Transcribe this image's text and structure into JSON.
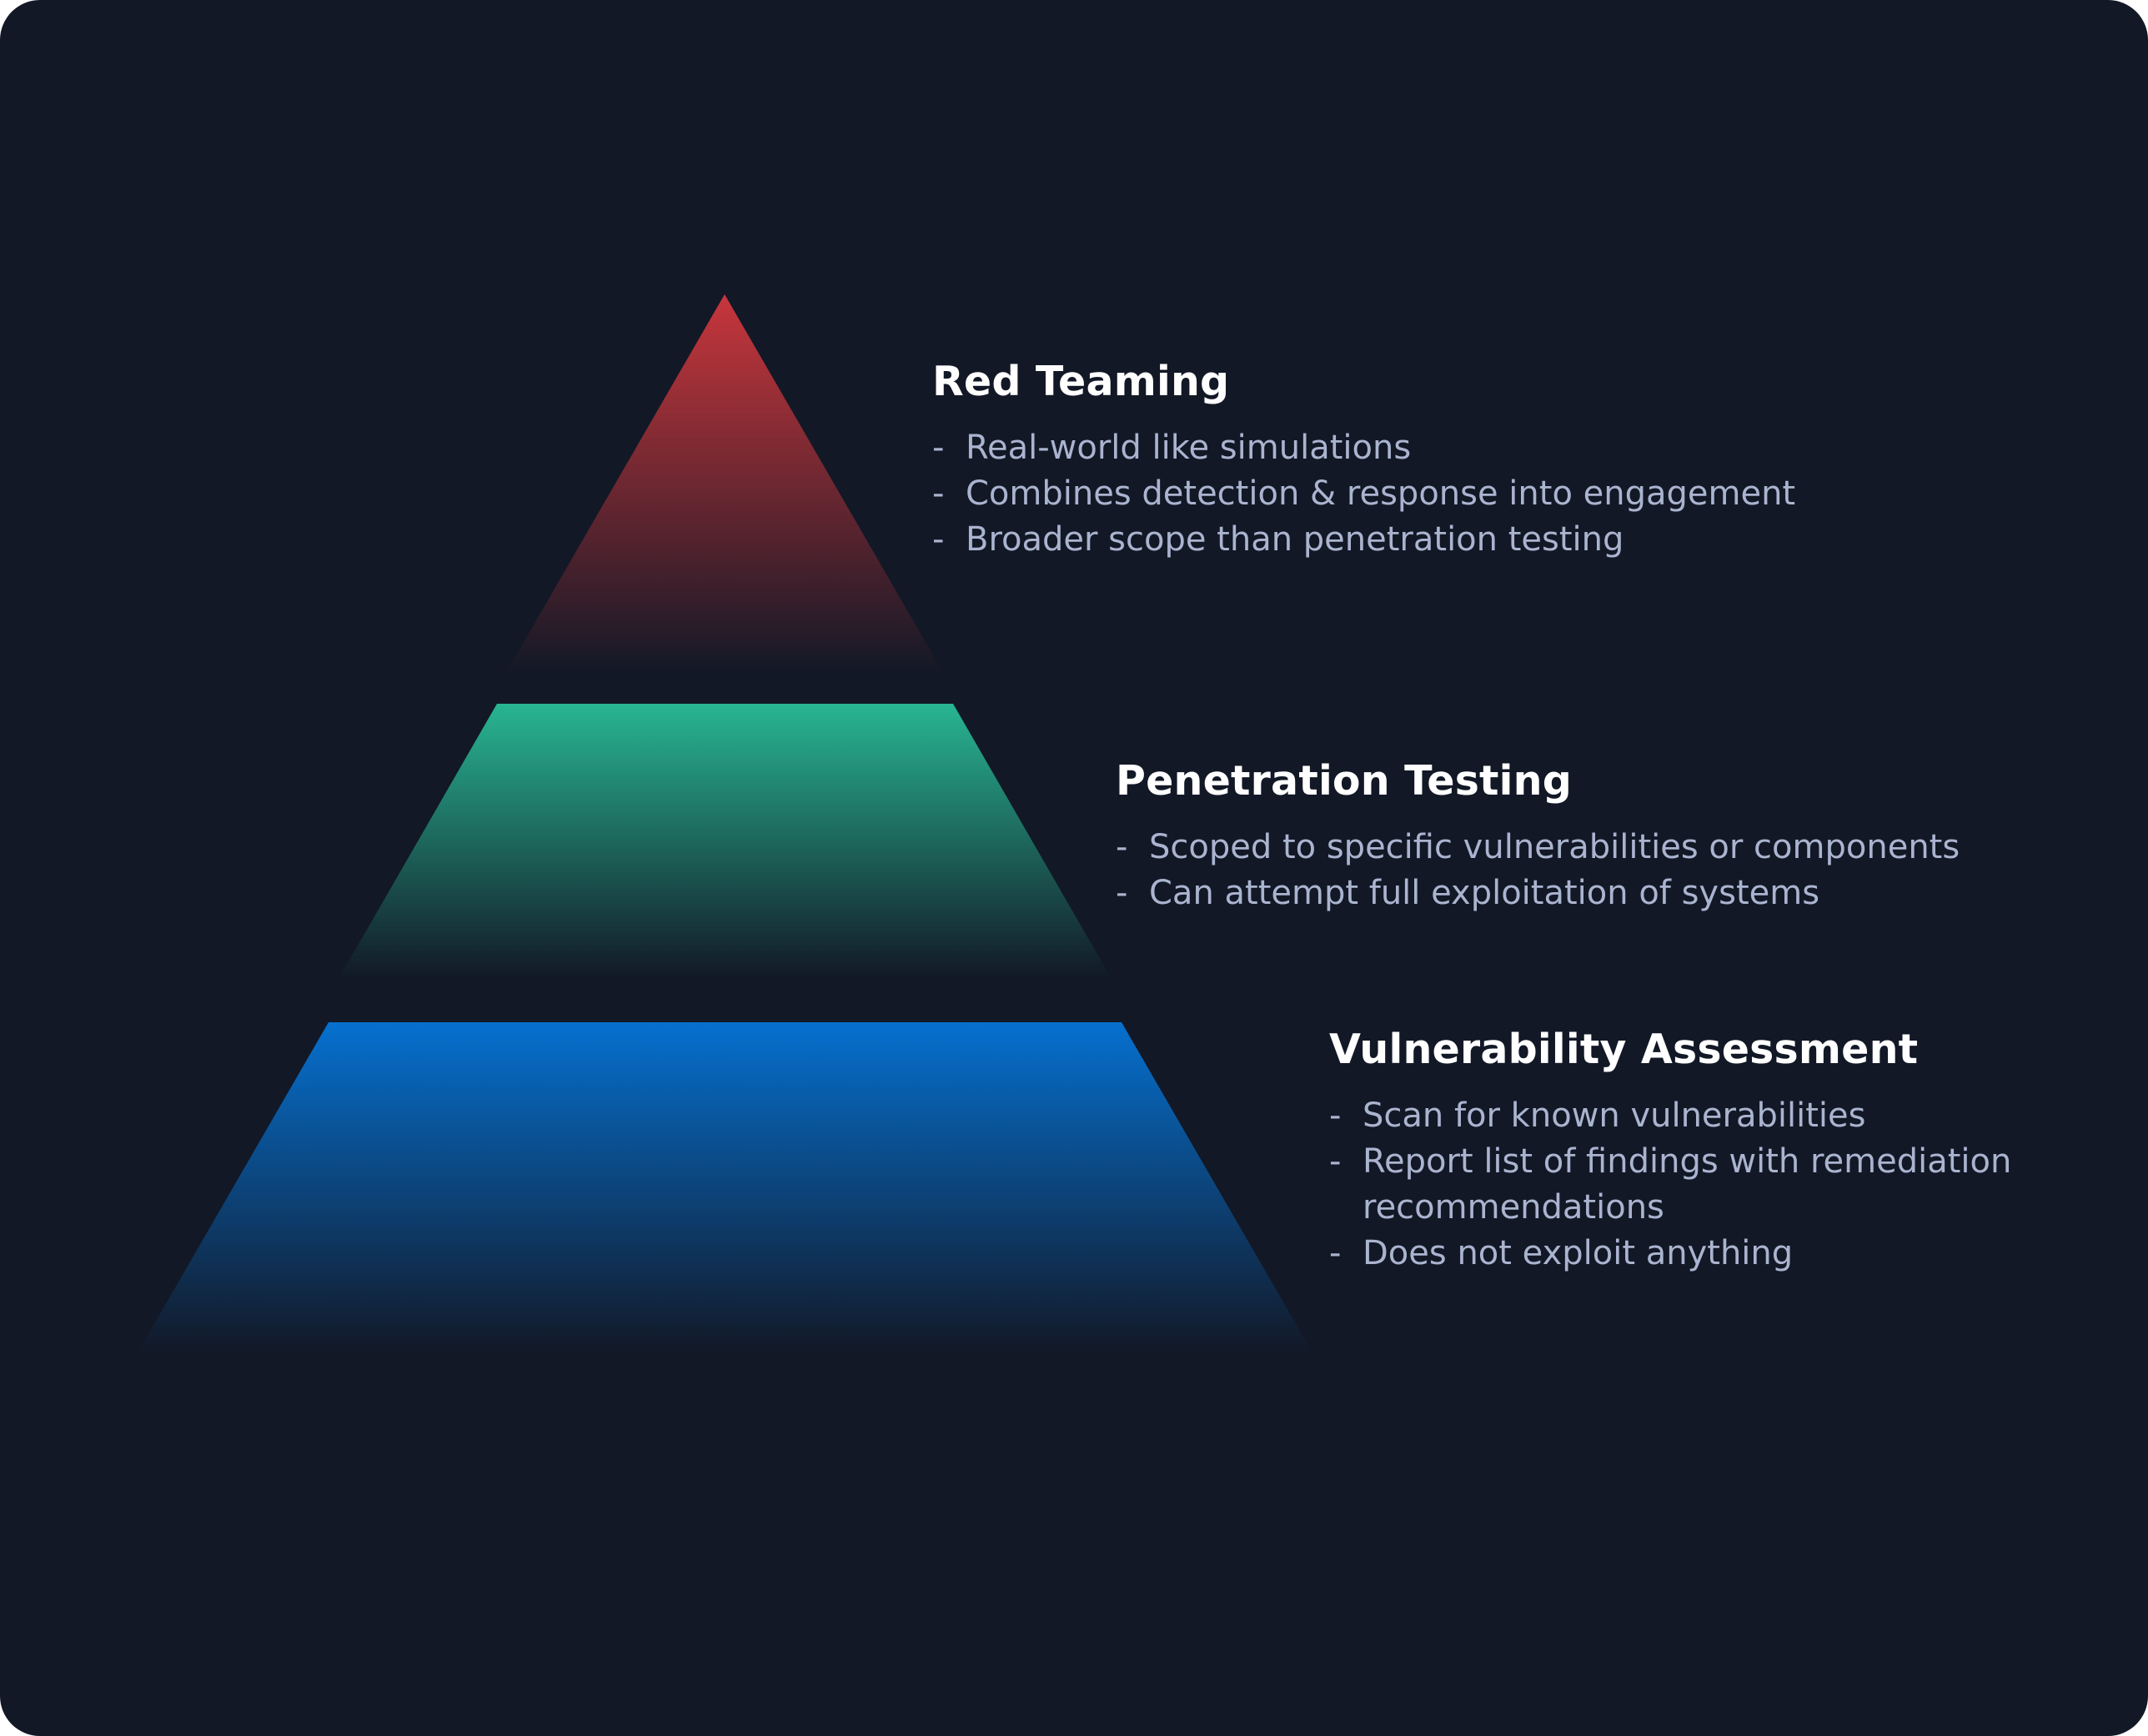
{
  "colors": {
    "background": "#121826",
    "title_text": "#ffffff",
    "bullet_text": "#aab4cf",
    "red_top": "#c8363c",
    "green_top": "#28b592",
    "blue_top": "#0670cf"
  },
  "tiers": [
    {
      "key": "red",
      "title": "Red Teaming",
      "bullet_marker": "-",
      "bullets": [
        "Real-world like simulations",
        "Combines detection & response into engagement",
        "Broader scope than penetration testing"
      ]
    },
    {
      "key": "green",
      "title": "Penetration Testing",
      "bullet_marker": "-",
      "bullets": [
        "Scoped to specific vulnerabilities or components",
        "Can attempt full exploitation of systems"
      ]
    },
    {
      "key": "blue",
      "title": "Vulnerability Assessment",
      "bullet_marker": "-",
      "bullets": [
        "Scan for known vulnerabilities",
        "Report list of findings with remediation",
        "recommendations",
        "Does not exploit anything"
      ]
    }
  ]
}
